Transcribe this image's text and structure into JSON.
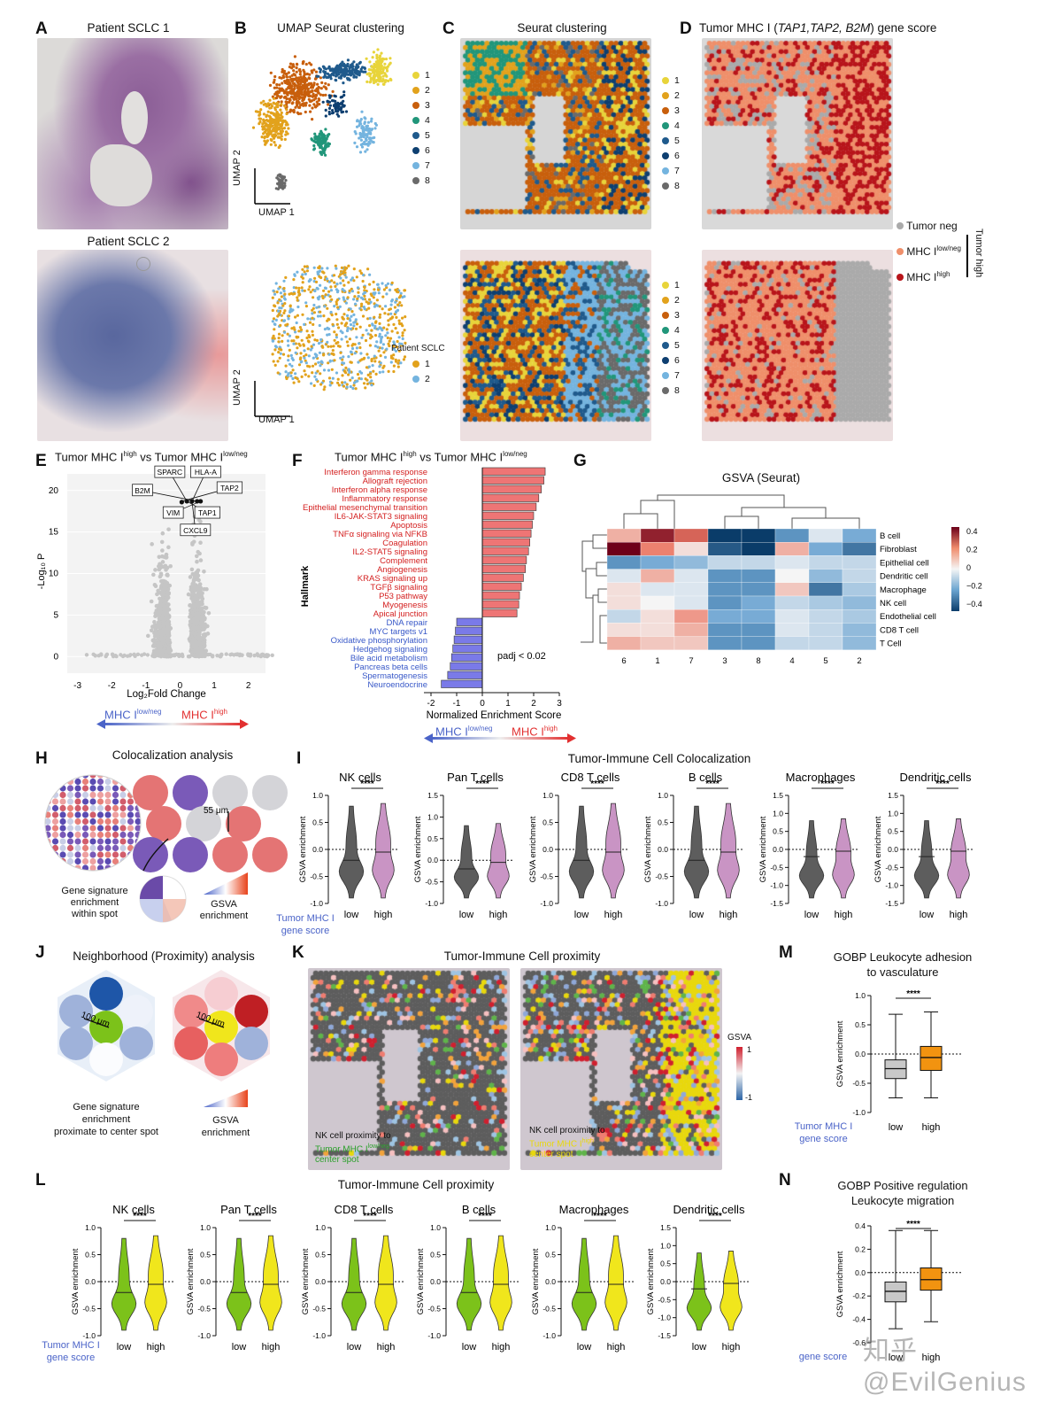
{
  "colors": {
    "c1": "#e8d43a",
    "c2": "#e2a21c",
    "c3": "#c85f0c",
    "c4": "#21967a",
    "c5": "#1f5a8c",
    "c6": "#0e3f70",
    "c7": "#74b4df",
    "c8": "#6a6a6a",
    "red": "#e23030",
    "blue": "#4a63c8",
    "salmon": "#ef8f6a",
    "darkred": "#b8141a",
    "grey": "#aaaaaa",
    "green": "#7cc21a",
    "yellow": "#f0e61c",
    "violet": "#c994c4",
    "darkgrey": "#5d5d5d",
    "orange": "#f29310",
    "lightgrey": "#c8c8c8"
  },
  "panels": {
    "A": {
      "letter": "A",
      "title1": "Patient SCLC 1",
      "title2": "Patient SCLC 2"
    },
    "B": {
      "letter": "B",
      "title": "UMAP Seurat clustering",
      "xlabel": "UMAP 1",
      "ylabel": "UMAP 2",
      "legend": [
        "1",
        "2",
        "3",
        "4",
        "5",
        "6",
        "7",
        "8"
      ],
      "patient_legend_title": "Patient SCLC",
      "patient_legend": [
        "1",
        "2"
      ]
    },
    "C": {
      "letter": "C",
      "title": "Seurat clustering",
      "legend": [
        "1",
        "2",
        "3",
        "4",
        "5",
        "6",
        "7",
        "8"
      ]
    },
    "D": {
      "letter": "D",
      "title_prefix": "Tumor MHC I (",
      "title_genes": "TAP1,TAP2, B2M",
      "title_suffix": ") gene score",
      "legend_neg": "Tumor neg",
      "legend_low": "MHC I",
      "legend_low_sup": "low/neg",
      "legend_high": "MHC I",
      "legend_high_sup": "high",
      "legend_group": "Tumor high"
    },
    "E": {
      "letter": "E",
      "title_a": "Tumor MHC I",
      "title_sup1": "high",
      "title_b": " vs Tumor MHC I",
      "title_sup2": "low/neg",
      "xlabel": "Log₂Fold Change",
      "ylabel": "-Log₁₀ P",
      "yticks": [
        "0",
        "5",
        "10",
        "15",
        "20"
      ],
      "xticks": [
        "-3",
        "-2",
        "-1",
        "0",
        "1",
        "2"
      ],
      "genes": [
        "SPARC",
        "HLA-A",
        "B2M",
        "TAP2",
        "VIM",
        "TAP1",
        "CXCL9"
      ],
      "arrow_low": "MHC I",
      "arrow_low_sup": "low/neg",
      "arrow_high": "MHC I",
      "arrow_high_sup": "high"
    },
    "F": {
      "letter": "F",
      "title_a": "Tumor MHC I",
      "title_sup1": "high",
      "title_b": " vs Tumor MHC I",
      "title_sup2": "low/neg",
      "ylabel": "Hallmark",
      "xlabel": "Normalized Enrichment Score",
      "xticks": [
        "-2",
        "-1",
        "0",
        "1",
        "2",
        "3"
      ],
      "padj": "padj < 0.02",
      "up": [
        {
          "name": "Interferon gamma response",
          "nes": 2.45
        },
        {
          "name": "Allograft rejection",
          "nes": 2.4
        },
        {
          "name": "Interferon alpha response",
          "nes": 2.3
        },
        {
          "name": "Inflammatory response",
          "nes": 2.2
        },
        {
          "name": "Epithelial mesenchymal transition",
          "nes": 2.1
        },
        {
          "name": "IL6-JAK-STAT3 signaling",
          "nes": 2.0
        },
        {
          "name": "Apoptosis",
          "nes": 1.95
        },
        {
          "name": "TNFα signaling via NFKB",
          "nes": 1.9
        },
        {
          "name": "Coagulation",
          "nes": 1.85
        },
        {
          "name": "IL2-STAT5 signaling",
          "nes": 1.8
        },
        {
          "name": "Complement",
          "nes": 1.72
        },
        {
          "name": "Angiogenesis",
          "nes": 1.68
        },
        {
          "name": "KRAS signaling up",
          "nes": 1.6
        },
        {
          "name": "TGFβ signaling",
          "nes": 1.52
        },
        {
          "name": "P53 pathway",
          "nes": 1.45
        },
        {
          "name": "Myogenesis",
          "nes": 1.42
        },
        {
          "name": "Apical junction",
          "nes": 1.35
        }
      ],
      "down": [
        {
          "name": "DNA repair",
          "nes": -1.0
        },
        {
          "name": "MYC targets v1",
          "nes": -1.05
        },
        {
          "name": "Oxidative phosphorylation",
          "nes": -1.1
        },
        {
          "name": "Hedgehog signaling",
          "nes": -1.15
        },
        {
          "name": "Bile acid metabolism",
          "nes": -1.2
        },
        {
          "name": "Pancreas beta cells",
          "nes": -1.25
        },
        {
          "name": "Spermatogenesis",
          "nes": -1.35
        },
        {
          "name": "Neuroendocrine",
          "nes": -1.6
        }
      ]
    },
    "G": {
      "letter": "G",
      "title": "GSVA (Seurat)",
      "rows": [
        "B cell",
        "Fibroblast",
        "Epithelial cell",
        "Dendritic cell",
        "Macrophage",
        "NK cell",
        "Endothelial cell",
        "CD8 T cell",
        "T Cell"
      ],
      "cols": [
        "6",
        "1",
        "7",
        "3",
        "8",
        "4",
        "5",
        "2"
      ],
      "scale": [
        "0.4",
        "0.2",
        "0",
        "−0.2",
        "−0.4"
      ]
    },
    "H": {
      "letter": "H",
      "title": "Colocalization analysis",
      "dist": "55 μm",
      "sig_label": "Gene signature\nenrichment\nwithin spot",
      "gsva_label": "GSVA\nenrichment"
    },
    "I": {
      "letter": "I",
      "title": "Tumor-Immune Cell Colocalization",
      "ylabel": "GSVA enrichment",
      "group_label": "Tumor MHC I\ngene score",
      "low": "low",
      "high": "high",
      "sig": "****",
      "plots": [
        {
          "name": "NK cells",
          "yticks": [
            "1.0",
            "0.5",
            "0.0",
            "-0.5",
            "-1.0"
          ]
        },
        {
          "name": "Pan T cells",
          "yticks": [
            "1.5",
            "1.0",
            "0.5",
            "0.0",
            "-0.5",
            "-1.0"
          ]
        },
        {
          "name": "CD8 T cells",
          "yticks": [
            "1.0",
            "0.5",
            "0.0",
            "-0.5",
            "-1.0"
          ]
        },
        {
          "name": "B cells",
          "yticks": [
            "1.0",
            "0.5",
            "0.0",
            "-0.5",
            "-1.0"
          ]
        },
        {
          "name": "Macrophages",
          "yticks": [
            "1.5",
            "1.0",
            "0.5",
            "0.0",
            "-0.5",
            "-1.0",
            "-1.5"
          ]
        },
        {
          "name": "Dendritic cells",
          "yticks": [
            "1.5",
            "1.0",
            "0.5",
            "0.0",
            "-0.5",
            "-1.0",
            "-1.5"
          ]
        }
      ]
    },
    "J": {
      "letter": "J",
      "title": "Neighborhood (Proximity) analysis",
      "dist": "100 μm",
      "sig_label": "Gene signature\nenrichment\nproximate to center spot",
      "gsva_label": "GSVA\nenrichment"
    },
    "K": {
      "letter": "K",
      "title": "Tumor-Immune Cell proximity",
      "gsva": "GSVA",
      "scale_hi": "1",
      "scale_lo": "-1",
      "cap1a": "NK cell proximity to",
      "cap1b": "Tumor MHC I",
      "cap1sup": "low/neg",
      "cap1c": "center spot",
      "cap2a": "NK cell proximity to",
      "cap2b": "Tumor MHC I",
      "cap2sup": "high",
      "cap2c": "center spot"
    },
    "L": {
      "letter": "L",
      "title": "Tumor-Immune Cell proximity",
      "ylabel": "GSVA enrichment",
      "group_label": "Tumor MHC I\ngene score",
      "low": "low",
      "high": "high",
      "sig": "****",
      "plots": [
        {
          "name": "NK cells",
          "yticks": [
            "1.0",
            "0.5",
            "0.0",
            "-0.5",
            "-1.0"
          ]
        },
        {
          "name": "Pan T cells",
          "yticks": [
            "1.0",
            "0.5",
            "0.0",
            "-0.5",
            "-1.0"
          ]
        },
        {
          "name": "CD8 T cells",
          "yticks": [
            "1.0",
            "0.5",
            "0.0",
            "-0.5",
            "-1.0"
          ]
        },
        {
          "name": "B cells",
          "yticks": [
            "1.0",
            "0.5",
            "0.0",
            "-0.5",
            "-1.0"
          ]
        },
        {
          "name": "Macrophages",
          "yticks": [
            "1.0",
            "0.5",
            "0.0",
            "-0.5",
            "-1.0"
          ]
        },
        {
          "name": "Dendritic cells",
          "yticks": [
            "1.5",
            "1.0",
            "0.5",
            "0.0",
            "-0.5",
            "-1.0",
            "-1.5"
          ]
        }
      ]
    },
    "M": {
      "letter": "M",
      "title1": "GOBP Leukocyte adhesion",
      "title2": "to vasculature",
      "ylabel": "GSVA enrichment",
      "yticks": [
        "1.0",
        "0.5",
        "0.0",
        "-0.5",
        "-1.0"
      ],
      "sig": "****",
      "low": "low",
      "high": "high",
      "group_label": "Tumor MHC I\ngene score"
    },
    "N": {
      "letter": "N",
      "title1": "GOBP Positive regulation",
      "title2": "Leukocyte migration",
      "ylabel": "GSVA enrichment",
      "yticks": [
        "0.4",
        "0.2",
        "0.0",
        "-0.2",
        "-0.4",
        "-0.6"
      ],
      "sig": "****",
      "low": "low",
      "high": "high",
      "group_label": "gene score"
    }
  },
  "watermark": "知乎 @EvilGenius"
}
